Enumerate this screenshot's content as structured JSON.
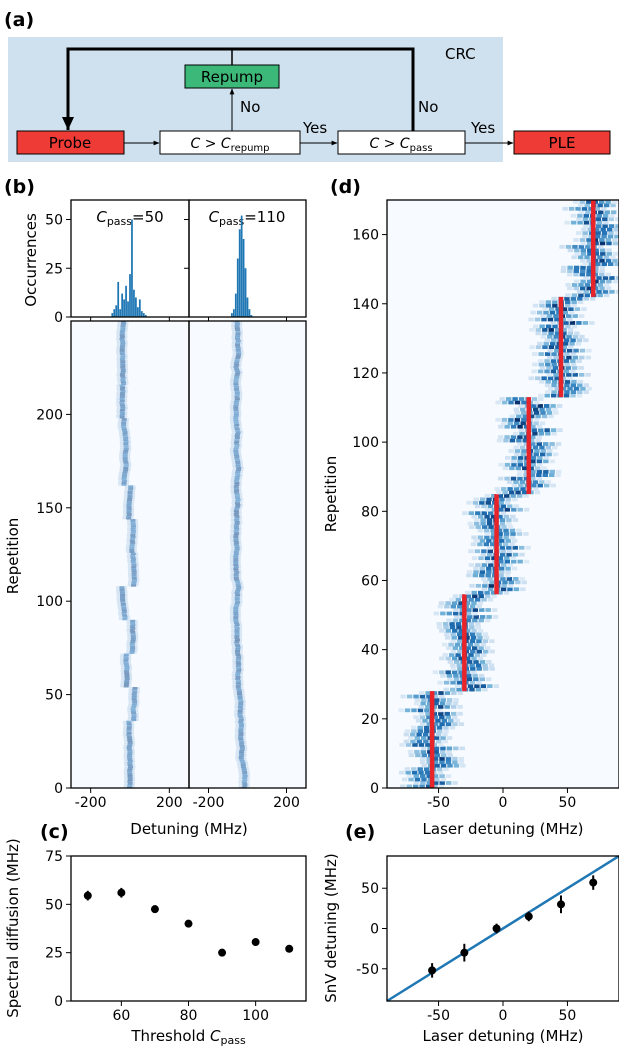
{
  "panel_a": {
    "label": "(a)",
    "crc_label": "CRC",
    "probe_label": "Probe",
    "repump_label": "Repump",
    "cond_repump": {
      "lhs": "C > C",
      "sub": "repump"
    },
    "cond_pass": {
      "lhs": "C > C",
      "sub": "pass"
    },
    "ple_label": "PLE",
    "yes_label": "Yes",
    "no_label": "No",
    "colors": {
      "background": "#cfe0ee",
      "probe": "#ef3b36",
      "repump": "#3cb878",
      "ple": "#ef3b36"
    }
  },
  "panel_b": {
    "label": "(b)",
    "ylabel_top": "Occurrences",
    "ylabel_bottom": "Repetition",
    "xlabel": "Detuning (MHz)",
    "titles": [
      {
        "sym": "C",
        "sub": "pass",
        "eq": "=50"
      },
      {
        "sym": "C",
        "sub": "pass",
        "eq": "=110"
      }
    ],
    "color": "#1f77b4"
  },
  "panel_c": {
    "label": "(c)"
  },
  "panel_d": {
    "label": "(d)"
  },
  "panel_e": {
    "label": "(e)"
  },
  "chart_data": [
    {
      "id": "b-hist-left",
      "type": "bar",
      "x": [
        -90,
        -80,
        -70,
        -60,
        -50,
        -40,
        -30,
        -20,
        -10,
        0,
        10,
        20,
        30,
        40,
        50,
        60,
        70,
        80
      ],
      "values": [
        2,
        4,
        6,
        18,
        4,
        12,
        9,
        16,
        8,
        22,
        50,
        14,
        10,
        5,
        9,
        3,
        2,
        1
      ],
      "xlim": [
        -300,
        300
      ],
      "ylim": [
        0,
        60
      ],
      "yticks": [
        0,
        25,
        50
      ],
      "xticks": [
        -200,
        200
      ],
      "title": "Cpass=50",
      "ylabel": "Occurrences"
    },
    {
      "id": "b-hist-right",
      "type": "bar",
      "x": [
        -80,
        -70,
        -60,
        -50,
        -40,
        -30,
        -20,
        -10,
        0,
        10,
        20
      ],
      "values": [
        2,
        4,
        12,
        30,
        45,
        52,
        40,
        25,
        10,
        4,
        1
      ],
      "xlim": [
        -300,
        300
      ],
      "ylim": [
        0,
        60
      ],
      "yticks": [
        0,
        25,
        50
      ],
      "xticks": [
        -200,
        200
      ],
      "title": "Cpass=110"
    },
    {
      "id": "b-heatmaps",
      "type": "heatmap",
      "xlim": [
        -300,
        300
      ],
      "ylim": [
        0,
        250
      ],
      "xticks": [
        -200,
        200
      ],
      "yticks": [
        0,
        50,
        100,
        150,
        200
      ],
      "xlabel": "Detuning (MHz)",
      "ylabel": "Repetition",
      "colormap": "Blues"
    },
    {
      "id": "c-spectral-diffusion",
      "type": "scatter",
      "x": [
        50,
        60,
        70,
        80,
        90,
        100,
        110
      ],
      "y": [
        54.5,
        56,
        47.5,
        40,
        25,
        30.5,
        27
      ],
      "yerr": [
        2.5,
        2.5,
        2,
        1.5,
        1,
        1,
        1
      ],
      "xlabel": "Threshold Cpass",
      "ylabel": "Spectral diffusion (MHz)",
      "xlim": [
        45,
        115
      ],
      "ylim": [
        0,
        75
      ],
      "xticks": [
        60,
        80,
        100
      ],
      "yticks": [
        0,
        25,
        50,
        75
      ]
    },
    {
      "id": "d-repetition-map",
      "type": "heatmap",
      "xlim": [
        -90,
        90
      ],
      "ylim": [
        0,
        170
      ],
      "xticks": [
        -50,
        0,
        50
      ],
      "yticks": [
        0,
        20,
        40,
        60,
        80,
        100,
        120,
        140,
        160
      ],
      "xlabel": "Laser detuning (MHz)",
      "ylabel": "Repetition",
      "laser_steps": [
        {
          "x": -55,
          "y0": 0,
          "y1": 28
        },
        {
          "x": -30,
          "y0": 28,
          "y1": 56
        },
        {
          "x": -5,
          "y0": 56,
          "y1": 85
        },
        {
          "x": 20,
          "y0": 85,
          "y1": 113
        },
        {
          "x": 45,
          "y0": 113,
          "y1": 142
        },
        {
          "x": 70,
          "y0": 142,
          "y1": 170
        }
      ],
      "marker_color": "#e8242b"
    },
    {
      "id": "e-snv-vs-laser",
      "type": "scatter",
      "x": [
        -55,
        -30,
        -5,
        20,
        45,
        70
      ],
      "y": [
        -52,
        -30,
        0,
        15,
        30,
        57
      ],
      "yerr": [
        9,
        11,
        6,
        6,
        11,
        9
      ],
      "fit_line": {
        "slope": 1,
        "intercept": 0
      },
      "xlabel": "Laser detuning (MHz)",
      "ylabel": "SnV detuning (MHz)",
      "xlim": [
        -90,
        90
      ],
      "ylim": [
        -90,
        90
      ],
      "xticks": [
        -50,
        0,
        50
      ],
      "yticks": [
        -50,
        0,
        50
      ]
    }
  ]
}
